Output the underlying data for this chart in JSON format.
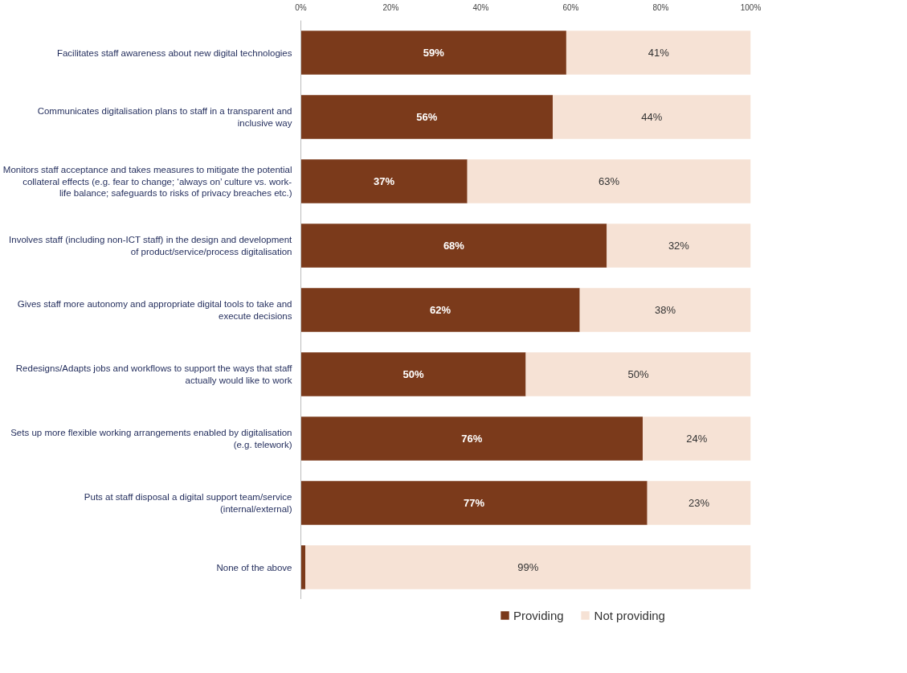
{
  "chart_data": {
    "type": "bar",
    "orientation": "horizontal",
    "stacked": true,
    "categories": [
      "Facilitates staff awareness about new digital technologies",
      "Communicates digitalisation plans to staff in a transparent and inclusive way",
      "Monitors staff acceptance and takes measures to mitigate the potential collateral effects (e.g. fear to change; ‘always on’ culture vs. work-life balance; safeguards to risks of privacy breaches etc.)",
      "Involves staff (including non-ICT staff) in the design and development of product/service/process digitalisation",
      "Gives staff more autonomy and appropriate digital tools to take and execute decisions",
      "Redesigns/Adapts jobs and workflows to support the ways that staff actually would like to work",
      "Sets up more flexible working arrangements enabled by digitalisation (e.g. telework)",
      "Puts at staff disposal a digital support team/service (internal/external)",
      "None of the above"
    ],
    "series": [
      {
        "name": "Providing",
        "color": "#7b3a1b",
        "values": [
          59,
          56,
          37,
          68,
          62,
          50,
          76,
          77,
          1
        ],
        "value_labels": [
          "59%",
          "56%",
          "37%",
          "68%",
          "62%",
          "50%",
          "76%",
          "77%",
          null
        ]
      },
      {
        "name": "Not providing",
        "color": "#f6e2d5",
        "values": [
          41,
          44,
          63,
          32,
          38,
          50,
          24,
          23,
          99
        ],
        "value_labels": [
          "41%",
          "44%",
          "63%",
          "32%",
          "38%",
          "50%",
          "24%",
          "23%",
          "99%"
        ]
      }
    ],
    "xlim": [
      0,
      100
    ],
    "xticks": [
      {
        "value": 0,
        "label": "0%"
      },
      {
        "value": 20,
        "label": "20%"
      },
      {
        "value": 40,
        "label": "40%"
      },
      {
        "value": 60,
        "label": "60%"
      },
      {
        "value": 80,
        "label": "80%"
      },
      {
        "value": 100,
        "label": "100%"
      }
    ],
    "grid": false,
    "legend": "bottom"
  }
}
